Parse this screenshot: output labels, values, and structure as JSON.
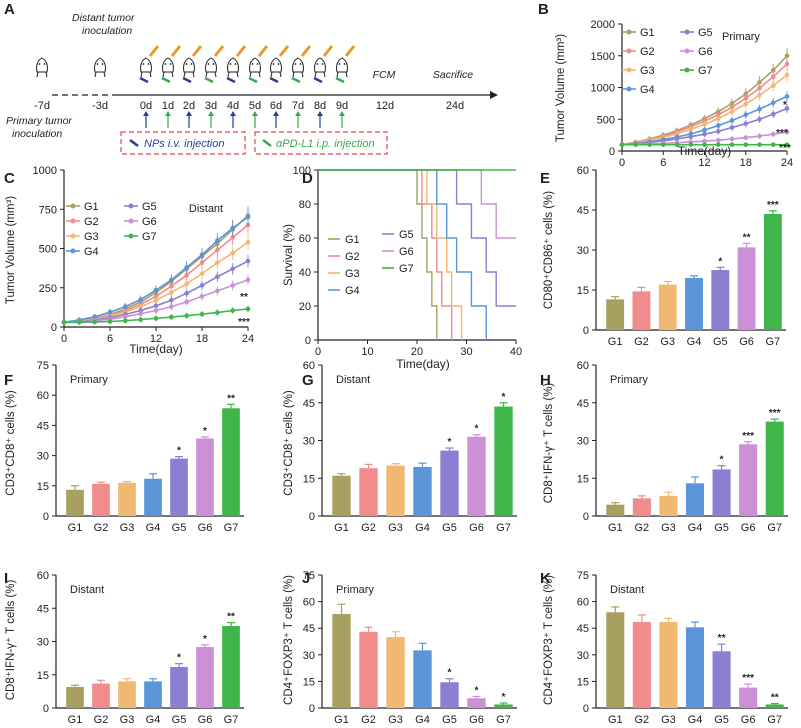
{
  "colors": {
    "G1": "#a8a060",
    "G2": "#f08c8c",
    "G3": "#f0b870",
    "G4": "#5b95d8",
    "G5": "#8a7fd0",
    "G6": "#cc90d8",
    "G7": "#3fb54a",
    "axis": "#333333",
    "blue_arrow": "#2a3d8f",
    "green_arrow": "#3aa84a",
    "dash_box": "#d94a55"
  },
  "panel_A": {
    "letter": "A",
    "timeline_labels": [
      "-7d",
      "-3d",
      "0d",
      "1d",
      "2d",
      "3d",
      "4d",
      "5d",
      "6d",
      "7d",
      "8d",
      "9d",
      "12d",
      "24d"
    ],
    "distant_label_line1": "Distant tumor",
    "distant_label_line2": "inoculation",
    "primary_label_line1": "Primary tumor",
    "primary_label_line2": "inoculation",
    "fcm": "FCM",
    "sacrifice": "Sacrifice",
    "nps_label": "NPs i.v. injection",
    "apd_label": "αPD-L1 i.p. injection",
    "nps_days": [
      "0d",
      "2d",
      "4d",
      "6d",
      "8d"
    ],
    "apd_days": [
      "1d",
      "3d",
      "5d",
      "7d",
      "9d"
    ]
  },
  "legend_groups": [
    "G1",
    "G2",
    "G3",
    "G4",
    "G5",
    "G6",
    "G7"
  ],
  "chart_data": [
    {
      "id": "B",
      "type": "line",
      "letter": "B",
      "title": "Primary",
      "xlabel": "Time(day)",
      "ylabel": "Tumor Volume (mm³)",
      "x": [
        0,
        2,
        4,
        6,
        8,
        10,
        12,
        14,
        16,
        18,
        20,
        22,
        24
      ],
      "xticks": [
        0,
        6,
        12,
        18,
        24
      ],
      "yticks": [
        0,
        500,
        1000,
        1500,
        2000
      ],
      "xlim": [
        0,
        24
      ],
      "ylim": [
        0,
        2000
      ],
      "series": [
        {
          "name": "G1",
          "values": [
            100,
            140,
            190,
            250,
            320,
            410,
            510,
            620,
            750,
            900,
            1080,
            1270,
            1500
          ]
        },
        {
          "name": "G2",
          "values": [
            100,
            135,
            180,
            230,
            300,
            380,
            470,
            570,
            690,
            830,
            990,
            1170,
            1370
          ]
        },
        {
          "name": "G3",
          "values": [
            100,
            130,
            170,
            215,
            270,
            340,
            420,
            510,
            620,
            740,
            880,
            1030,
            1200
          ]
        },
        {
          "name": "G4",
          "values": [
            100,
            120,
            145,
            180,
            220,
            270,
            330,
            400,
            480,
            570,
            660,
            760,
            860
          ]
        },
        {
          "name": "G5",
          "values": [
            100,
            115,
            135,
            160,
            190,
            225,
            265,
            310,
            370,
            430,
            500,
            580,
            670
          ]
        },
        {
          "name": "G6",
          "values": [
            100,
            105,
            112,
            120,
            130,
            142,
            155,
            170,
            190,
            210,
            235,
            265,
            300
          ]
        },
        {
          "name": "G7",
          "values": [
            100,
            100,
            100,
            100,
            100,
            100,
            100,
            100,
            100,
            100,
            100,
            100,
            100
          ]
        }
      ],
      "annotations": [
        "*",
        "***",
        "***"
      ]
    },
    {
      "id": "C",
      "type": "line",
      "letter": "C",
      "title": "Distant",
      "xlabel": "Time(day)",
      "ylabel": "Tumor Volume (mm³)",
      "x": [
        0,
        2,
        4,
        6,
        8,
        10,
        12,
        14,
        16,
        18,
        20,
        22,
        24
      ],
      "xticks": [
        0,
        6,
        12,
        18,
        24
      ],
      "yticks": [
        0,
        250,
        500,
        750,
        1000
      ],
      "xlim": [
        0,
        24
      ],
      "ylim": [
        0,
        1000
      ],
      "series": [
        {
          "name": "G1",
          "values": [
            30,
            40,
            55,
            80,
            115,
            160,
            220,
            290,
            370,
            450,
            530,
            620,
            710
          ]
        },
        {
          "name": "G2",
          "values": [
            30,
            38,
            52,
            75,
            105,
            145,
            195,
            260,
            330,
            410,
            490,
            570,
            650
          ]
        },
        {
          "name": "G3",
          "values": [
            30,
            37,
            50,
            70,
            95,
            130,
            170,
            220,
            275,
            340,
            410,
            470,
            540
          ]
        },
        {
          "name": "G4",
          "values": [
            30,
            45,
            65,
            95,
            130,
            175,
            235,
            300,
            380,
            460,
            550,
            630,
            700
          ]
        },
        {
          "name": "G5",
          "values": [
            30,
            35,
            45,
            60,
            80,
            105,
            135,
            170,
            215,
            265,
            320,
            370,
            420
          ]
        },
        {
          "name": "G6",
          "values": [
            30,
            33,
            40,
            50,
            65,
            85,
            105,
            130,
            160,
            195,
            230,
            265,
            300
          ]
        },
        {
          "name": "G7",
          "values": [
            30,
            30,
            32,
            35,
            40,
            47,
            55,
            63,
            72,
            82,
            92,
            105,
            115
          ]
        }
      ],
      "annotations": [
        "**",
        "***"
      ]
    },
    {
      "id": "D",
      "type": "line",
      "letter": "D",
      "title": "",
      "xlabel": "Time(day)",
      "ylabel": "Survival (%)",
      "xticks": [
        0,
        10,
        20,
        30,
        40
      ],
      "yticks": [
        0,
        20,
        40,
        60,
        80,
        100
      ],
      "xlim": [
        0,
        40
      ],
      "ylim": [
        0,
        100
      ],
      "series": [
        {
          "name": "G1",
          "steps": [
            [
              0,
              100
            ],
            [
              20,
              100
            ],
            [
              20,
              80
            ],
            [
              21,
              80
            ],
            [
              21,
              60
            ],
            [
              22,
              60
            ],
            [
              22,
              40
            ],
            [
              23,
              40
            ],
            [
              23,
              20
            ],
            [
              24,
              20
            ],
            [
              24,
              0
            ]
          ]
        },
        {
          "name": "G2",
          "steps": [
            [
              0,
              100
            ],
            [
              21,
              100
            ],
            [
              21,
              80
            ],
            [
              23,
              80
            ],
            [
              23,
              60
            ],
            [
              24,
              60
            ],
            [
              24,
              40
            ],
            [
              25,
              40
            ],
            [
              25,
              20
            ],
            [
              27,
              20
            ],
            [
              27,
              0
            ]
          ]
        },
        {
          "name": "G3",
          "steps": [
            [
              0,
              100
            ],
            [
              22,
              100
            ],
            [
              22,
              80
            ],
            [
              24,
              80
            ],
            [
              24,
              60
            ],
            [
              26,
              60
            ],
            [
              26,
              40
            ],
            [
              27,
              40
            ],
            [
              27,
              20
            ],
            [
              29,
              20
            ],
            [
              29,
              0
            ]
          ]
        },
        {
          "name": "G4",
          "steps": [
            [
              0,
              100
            ],
            [
              24,
              100
            ],
            [
              24,
              80
            ],
            [
              26,
              80
            ],
            [
              26,
              60
            ],
            [
              28,
              60
            ],
            [
              28,
              40
            ],
            [
              31,
              40
            ],
            [
              31,
              20
            ],
            [
              34,
              20
            ],
            [
              34,
              0
            ]
          ]
        },
        {
          "name": "G5",
          "steps": [
            [
              0,
              100
            ],
            [
              28,
              100
            ],
            [
              28,
              80
            ],
            [
              31,
              80
            ],
            [
              31,
              60
            ],
            [
              34,
              60
            ],
            [
              34,
              40
            ],
            [
              36,
              40
            ],
            [
              36,
              20
            ],
            [
              40,
              20
            ]
          ]
        },
        {
          "name": "G6",
          "steps": [
            [
              0,
              100
            ],
            [
              33,
              100
            ],
            [
              33,
              80
            ],
            [
              36,
              80
            ],
            [
              36,
              60
            ],
            [
              40,
              60
            ]
          ]
        },
        {
          "name": "G7",
          "steps": [
            [
              0,
              100
            ],
            [
              40,
              100
            ]
          ]
        }
      ]
    },
    {
      "id": "E",
      "type": "bar",
      "letter": "E",
      "title": "",
      "ylabel": "CD80⁺CD86⁺ cells (%)",
      "categories": [
        "G1",
        "G2",
        "G3",
        "G4",
        "G5",
        "G6",
        "G7"
      ],
      "values": [
        11.5,
        14.5,
        17,
        19.5,
        22.5,
        31,
        43.5
      ],
      "errors": [
        1,
        1.5,
        1.2,
        0.8,
        1,
        1.5,
        1.2
      ],
      "sig": [
        "",
        "",
        "",
        "",
        "*",
        "**",
        "***"
      ],
      "yticks": [
        0,
        15,
        30,
        45,
        60
      ],
      "ylim": [
        0,
        60
      ]
    },
    {
      "id": "F",
      "type": "bar",
      "letter": "F",
      "title": "Primary",
      "ylabel": "CD3⁺CD8⁺ cells (%)",
      "categories": [
        "G1",
        "G2",
        "G3",
        "G4",
        "G5",
        "G6",
        "G7"
      ],
      "values": [
        13,
        16,
        16.5,
        18.5,
        28.5,
        38.5,
        53.5
      ],
      "errors": [
        2,
        0.8,
        0.6,
        2.5,
        1,
        0.8,
        2
      ],
      "sig": [
        "",
        "",
        "",
        "",
        "*",
        "*",
        "**"
      ],
      "yticks": [
        0,
        15,
        30,
        45,
        60,
        75
      ],
      "ylim": [
        0,
        75
      ]
    },
    {
      "id": "G",
      "type": "bar",
      "letter": "G",
      "title": "Distant",
      "ylabel": "CD3⁺CD8⁺ cells (%)",
      "categories": [
        "G1",
        "G2",
        "G3",
        "G4",
        "G5",
        "G6",
        "G7"
      ],
      "values": [
        16,
        19,
        20,
        19.5,
        26,
        31.5,
        43.5
      ],
      "errors": [
        0.8,
        1.5,
        0.8,
        1.5,
        1,
        0.8,
        1.5
      ],
      "sig": [
        "",
        "",
        "",
        "",
        "*",
        "*",
        "*"
      ],
      "yticks": [
        0,
        15,
        30,
        45,
        60
      ],
      "ylim": [
        0,
        60
      ]
    },
    {
      "id": "H",
      "type": "bar",
      "letter": "H",
      "title": "Primary",
      "ylabel": "CD8⁺IFN-γ⁺ T cells (%)",
      "categories": [
        "G1",
        "G2",
        "G3",
        "G4",
        "G5",
        "G6",
        "G7"
      ],
      "values": [
        4.5,
        7,
        8,
        13,
        18.5,
        28.5,
        37.5
      ],
      "errors": [
        0.8,
        1,
        1.5,
        2.5,
        1.5,
        1,
        1
      ],
      "sig": [
        "",
        "",
        "",
        "",
        "*",
        "***",
        "***"
      ],
      "yticks": [
        0,
        15,
        30,
        45,
        60
      ],
      "ylim": [
        0,
        60
      ]
    },
    {
      "id": "I",
      "type": "bar",
      "letter": "I",
      "title": "Distant",
      "ylabel": "CD8⁺IFN-γ⁺ T cells (%)",
      "categories": [
        "G1",
        "G2",
        "G3",
        "G4",
        "G5",
        "G6",
        "G7"
      ],
      "values": [
        9.5,
        11,
        12,
        12,
        18.5,
        27.5,
        37
      ],
      "errors": [
        0.8,
        1.5,
        1.2,
        1.2,
        1.5,
        1,
        1.5
      ],
      "sig": [
        "",
        "",
        "",
        "",
        "*",
        "*",
        "**"
      ],
      "yticks": [
        0,
        15,
        30,
        45,
        60
      ],
      "ylim": [
        0,
        60
      ]
    },
    {
      "id": "J",
      "type": "bar",
      "letter": "J",
      "title": "Primary",
      "ylabel": "CD4⁺FOXP3⁺ T cells (%)",
      "categories": [
        "G1",
        "G2",
        "G3",
        "G4",
        "G5",
        "G6",
        "G7"
      ],
      "values": [
        53,
        43,
        40,
        32.5,
        14.5,
        5.5,
        2
      ],
      "errors": [
        5.5,
        2.5,
        3,
        4,
        2,
        1,
        0.8
      ],
      "sig": [
        "",
        "",
        "",
        "",
        "*",
        "*",
        "*"
      ],
      "yticks": [
        0,
        15,
        30,
        45,
        60,
        75
      ],
      "ylim": [
        0,
        75
      ]
    },
    {
      "id": "K",
      "type": "bar",
      "letter": "K",
      "title": "Distant",
      "ylabel": "CD4⁺FOXP3⁺ T cells (%)",
      "categories": [
        "G1",
        "G2",
        "G3",
        "G4",
        "G5",
        "G6",
        "G7"
      ],
      "values": [
        54,
        48.5,
        48.5,
        45.5,
        32,
        11.5,
        2
      ],
      "errors": [
        3,
        4,
        2,
        3,
        4,
        2,
        0.5
      ],
      "sig": [
        "",
        "",
        "",
        "",
        "**",
        "***",
        "**"
      ],
      "yticks": [
        0,
        15,
        30,
        45,
        60,
        75
      ],
      "ylim": [
        0,
        75
      ]
    }
  ]
}
